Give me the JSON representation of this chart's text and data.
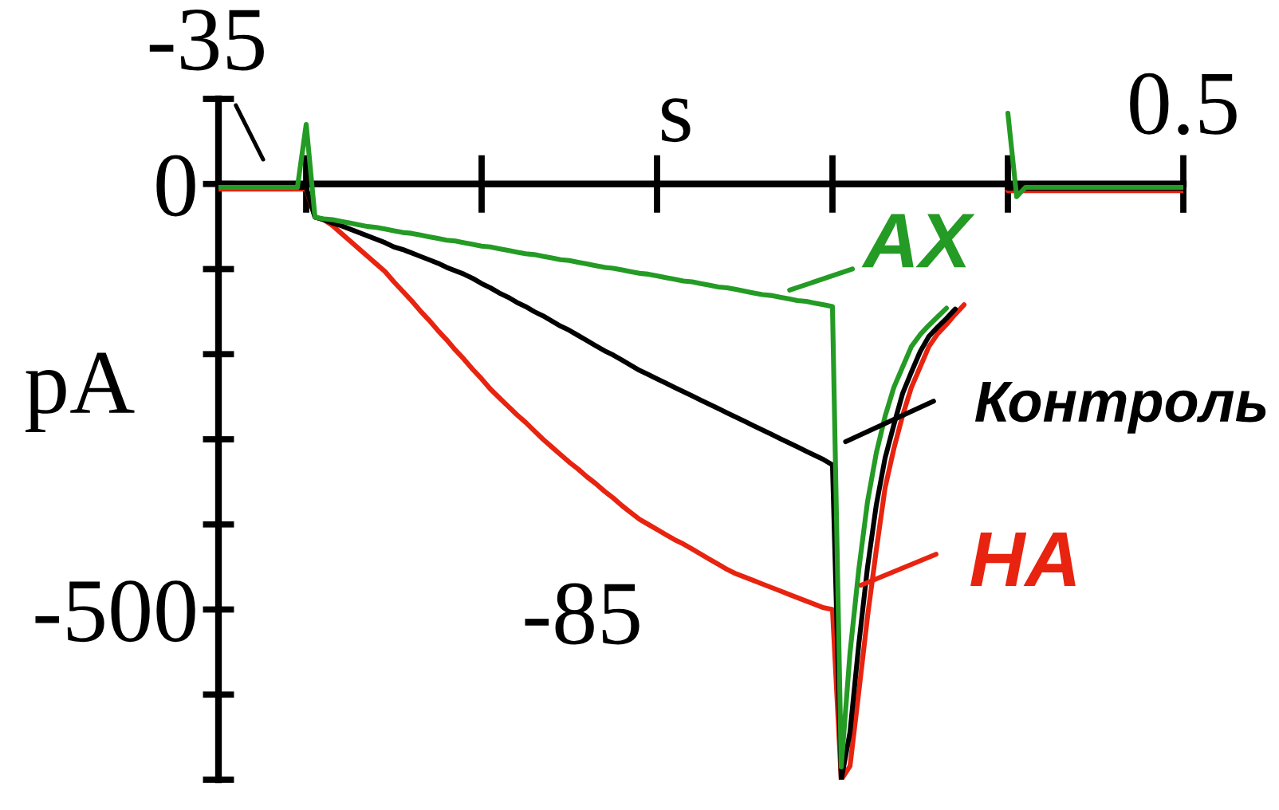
{
  "chart_data": {
    "type": "line",
    "xlabel": "s",
    "ylabel": "pA",
    "categories": [
      null,
      null,
      null,
      null,
      null,
      null,
      null,
      null,
      null,
      null,
      null,
      null,
      null,
      null,
      null,
      null,
      null,
      null,
      null,
      null,
      null,
      null,
      null,
      null,
      null,
      null,
      null,
      null,
      null,
      null,
      null,
      null,
      null,
      null,
      null,
      null,
      null,
      null,
      null,
      null,
      null,
      null,
      null,
      null,
      null,
      null,
      null,
      null,
      null,
      null,
      null,
      null,
      null,
      null,
      null,
      null,
      null,
      null,
      null,
      null,
      null,
      null,
      null,
      null,
      null,
      null,
      null,
      null,
      null,
      null,
      null,
      null,
      null,
      null,
      null,
      null,
      null,
      null,
      null,
      null,
      null,
      null,
      null,
      null,
      null,
      null,
      null,
      null,
      null,
      null,
      null,
      null,
      null,
      null,
      null,
      null,
      null,
      null,
      null,
      null,
      null,
      null,
      null,
      null,
      null,
      null,
      null,
      null,
      null,
      null,
      "0.5"
    ],
    "ylim": [
      -700,
      100
    ],
    "yticks": [
      {
        "value": 100,
        "label": null
      },
      {
        "value": 0,
        "label": "0"
      },
      {
        "value": -100,
        "label": null
      },
      {
        "value": -200,
        "label": null
      },
      {
        "value": -300,
        "label": null
      },
      {
        "value": -400,
        "label": null
      },
      {
        "value": -500,
        "label": "-500"
      },
      {
        "value": -600,
        "label": null
      },
      {
        "value": -700,
        "label": null
      }
    ],
    "line_style": "solid",
    "legend": "right",
    "annotations": [
      "-35",
      "-85"
    ],
    "series": [
      {
        "name": "АХ",
        "color": "#249b24",
        "values": [
          -4,
          -4,
          -4,
          -4,
          -4,
          -4,
          -4,
          -4,
          -4,
          -4,
          70,
          -39,
          -41,
          -42,
          -44,
          -46,
          -48,
          -50,
          -51,
          -53,
          -55,
          -57,
          -58,
          -60,
          -62,
          -64,
          -66,
          -67,
          -69,
          -71,
          -73,
          -74,
          -76,
          -78,
          -80,
          -82,
          -83,
          -85,
          -87,
          -89,
          -90,
          -92,
          -94,
          -96,
          -98,
          -99,
          -101,
          -103,
          -105,
          -106,
          -108,
          -110,
          -112,
          -114,
          -115,
          -117,
          -119,
          -121,
          -122,
          -124,
          -126,
          -128,
          -130,
          -131,
          -133,
          -135,
          -137,
          -138,
          -140,
          -142,
          -144,
          -685,
          -551,
          -453,
          -373,
          -316,
          -273,
          -239,
          -215,
          -191,
          -177,
          -166,
          -156,
          -146,
          null,
          null,
          null,
          null,
          null,
          null,
          null,
          null,
          null,
          null,
          null,
          null,
          null,
          null,
          null,
          null,
          null,
          null,
          null,
          null,
          null,
          null,
          null,
          null,
          null,
          null,
          null
        ]
      },
      {
        "name": "Контроль",
        "color": "#000000",
        "values": [
          -4,
          -4,
          -4,
          -4,
          -4,
          -4,
          -4,
          -4,
          -4,
          -4,
          -4,
          -39,
          -42,
          -46,
          -49,
          -53,
          -57,
          -61,
          -65,
          -69,
          -74,
          -77,
          -81,
          -85,
          -89,
          -93,
          -98,
          -102,
          -106,
          -111,
          -117,
          -122,
          -128,
          -133,
          -139,
          -144,
          -150,
          -155,
          -161,
          -167,
          -172,
          -178,
          -184,
          -190,
          -196,
          -201,
          -207,
          -213,
          -219,
          -224,
          -229,
          -234,
          -239,
          -244,
          -249,
          -254,
          -259,
          -264,
          -269,
          -274,
          -279,
          -284,
          -289,
          -294,
          -299,
          -304,
          -309,
          -314,
          -319,
          -324,
          -330,
          -700,
          -644,
          -541,
          -450,
          -377,
          -322,
          -283,
          -246,
          -221,
          -197,
          -179,
          -168,
          -158,
          -147,
          null,
          null,
          null,
          null,
          null,
          null,
          null,
          null,
          null,
          null,
          null,
          null,
          null,
          null,
          null,
          null,
          null,
          null,
          null,
          null,
          null,
          null,
          null,
          null,
          null,
          null
        ]
      },
      {
        "name": "НА",
        "color": "#e8230f",
        "values": [
          -6,
          -6,
          -6,
          -6,
          -6,
          -6,
          -6,
          -6,
          -6,
          -6,
          -6,
          -39,
          -42,
          -49,
          -58,
          -67,
          -76,
          -85,
          -94,
          -103,
          -115,
          -126,
          -137,
          -149,
          -160,
          -172,
          -183,
          -195,
          -206,
          -218,
          -229,
          -241,
          -251,
          -261,
          -271,
          -280,
          -290,
          -300,
          -309,
          -318,
          -327,
          -335,
          -344,
          -352,
          -361,
          -369,
          -378,
          -386,
          -394,
          -400,
          -406,
          -412,
          -418,
          -423,
          -429,
          -435,
          -441,
          -447,
          -453,
          -458,
          -462,
          -466,
          -470,
          -474,
          -478,
          -482,
          -486,
          -490,
          -494,
          -498,
          -500,
          -700,
          -684,
          -597,
          -508,
          -430,
          -357,
          -311,
          -272,
          -239,
          -215,
          -191,
          -176,
          -165,
          -153,
          -142,
          null,
          null,
          null,
          null,
          null,
          null,
          null,
          null,
          null,
          null,
          null,
          null,
          null,
          null,
          null,
          null,
          null,
          null,
          null,
          null,
          null,
          null,
          null,
          null,
          null
        ]
      },
      {
        "color": "#249b24",
        "values": [
          null,
          null,
          null,
          null,
          null,
          null,
          null,
          null,
          null,
          null,
          null,
          null,
          null,
          null,
          null,
          null,
          null,
          null,
          null,
          null,
          null,
          null,
          null,
          null,
          null,
          null,
          null,
          null,
          null,
          null,
          null,
          null,
          null,
          null,
          null,
          null,
          null,
          null,
          null,
          null,
          null,
          null,
          null,
          null,
          null,
          null,
          null,
          null,
          null,
          null,
          null,
          null,
          null,
          null,
          null,
          null,
          null,
          null,
          null,
          null,
          null,
          null,
          null,
          null,
          null,
          null,
          null,
          null,
          null,
          null,
          null,
          null,
          null,
          null,
          null,
          null,
          null,
          null,
          null,
          null,
          null,
          null,
          null,
          null,
          null,
          null,
          null,
          null,
          null,
          null,
          83,
          -15,
          -4,
          -4,
          -4,
          -4,
          -4,
          -4,
          -4,
          -4,
          -4,
          -4,
          -4,
          -4,
          -4,
          -4,
          -4,
          -4,
          -4,
          -4,
          -4
        ]
      },
      {
        "color": "#000000",
        "values": [
          null,
          null,
          null,
          null,
          null,
          null,
          null,
          null,
          null,
          null,
          null,
          null,
          null,
          null,
          null,
          null,
          null,
          null,
          null,
          null,
          null,
          null,
          null,
          null,
          null,
          null,
          null,
          null,
          null,
          null,
          null,
          null,
          null,
          null,
          null,
          null,
          null,
          null,
          null,
          null,
          null,
          null,
          null,
          null,
          null,
          null,
          null,
          null,
          null,
          null,
          null,
          null,
          null,
          null,
          null,
          null,
          null,
          null,
          null,
          null,
          null,
          null,
          null,
          null,
          null,
          null,
          null,
          null,
          null,
          null,
          null,
          null,
          null,
          null,
          null,
          null,
          null,
          null,
          null,
          null,
          null,
          null,
          null,
          null,
          null,
          null,
          null,
          null,
          null,
          null,
          -5,
          -5,
          -5,
          -5,
          -5,
          -5,
          -5,
          -5,
          -5,
          -5,
          -5,
          -5,
          -5,
          -5,
          -5,
          -5,
          -5,
          -5,
          -5,
          -5,
          -5
        ]
      },
      {
        "color": "#e8230f",
        "values": [
          null,
          null,
          null,
          null,
          null,
          null,
          null,
          null,
          null,
          null,
          null,
          null,
          null,
          null,
          null,
          null,
          null,
          null,
          null,
          null,
          null,
          null,
          null,
          null,
          null,
          null,
          null,
          null,
          null,
          null,
          null,
          null,
          null,
          null,
          null,
          null,
          null,
          null,
          null,
          null,
          null,
          null,
          null,
          null,
          null,
          null,
          null,
          null,
          null,
          null,
          null,
          null,
          null,
          null,
          null,
          null,
          null,
          null,
          null,
          null,
          null,
          null,
          null,
          null,
          null,
          null,
          null,
          null,
          null,
          null,
          null,
          null,
          null,
          null,
          null,
          null,
          null,
          null,
          null,
          null,
          null,
          null,
          null,
          null,
          null,
          null,
          null,
          null,
          null,
          null,
          -8,
          -8,
          -8,
          -8,
          -8,
          -8,
          -8,
          -8,
          -8,
          -8,
          -8,
          -8,
          -8,
          -8,
          -8,
          -8,
          -8,
          -8,
          -8,
          -8,
          -8
        ]
      }
    ]
  }
}
